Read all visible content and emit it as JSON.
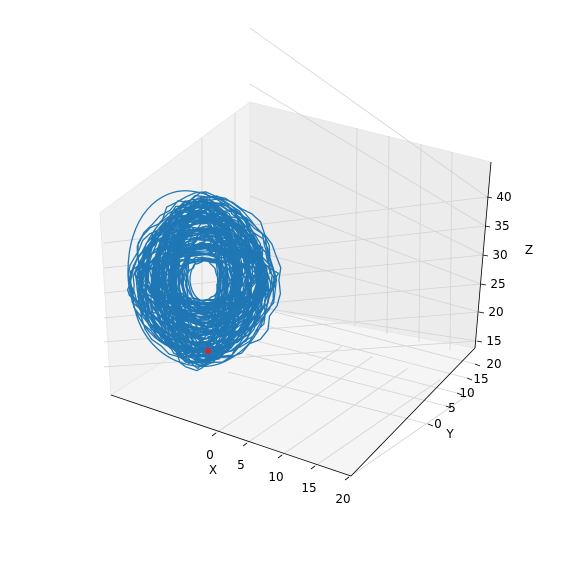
{
  "chart_data": {
    "type": "line",
    "projection": "3d",
    "title": "",
    "xlabel": "X",
    "ylabel": "Y",
    "zlabel": "Z",
    "x_ticks": [
      "0",
      "5",
      "10",
      "15",
      "20"
    ],
    "y_ticks": [
      "0",
      "5",
      "10",
      "15",
      "20"
    ],
    "z_ticks": [
      "15",
      "20",
      "25",
      "30",
      "35",
      "40"
    ],
    "xlim": [
      -9,
      21
    ],
    "ylim": [
      -3,
      22
    ],
    "zlim": [
      14,
      44
    ],
    "grid": true,
    "series": [
      {
        "color": "#1f77b4",
        "description_points": [
          {
            "x": -8,
            "y": 6,
            "z": 26
          },
          {
            "x": -7,
            "y": 5,
            "z": 34
          },
          {
            "x": -4,
            "y": 6,
            "z": 38
          },
          {
            "x": 0,
            "y": 8,
            "z": 36
          },
          {
            "x": 2,
            "y": 9,
            "z": 28
          },
          {
            "x": 1,
            "y": 8,
            "z": 20
          },
          {
            "x": -3,
            "y": 6,
            "z": 17
          },
          {
            "x": -6,
            "y": 5,
            "z": 20
          }
        ]
      }
    ],
    "marker": {
      "x": -1,
      "y": 5,
      "z": 17,
      "color": "#d62728"
    }
  }
}
